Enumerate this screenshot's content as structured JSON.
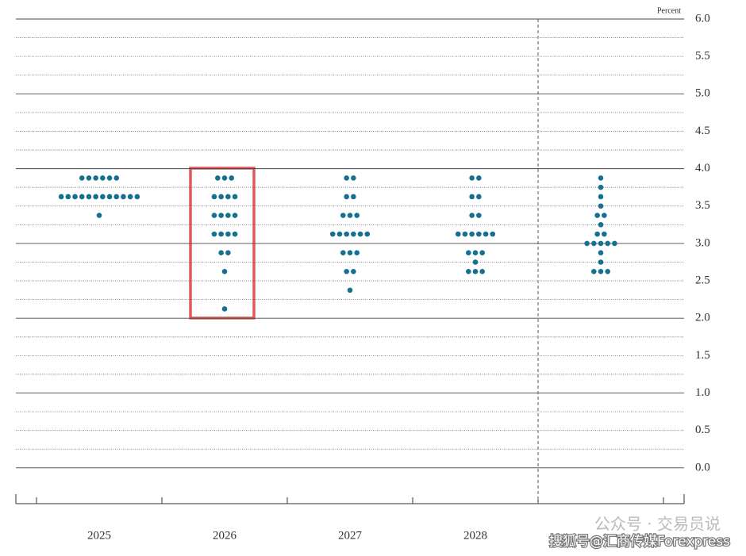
{
  "chart_data": {
    "type": "dot",
    "y_label": "Percent",
    "categories": [
      "2025",
      "2026",
      "2027",
      "2028",
      null
    ],
    "values": [
      [
        3.875,
        3.875,
        3.875,
        3.875,
        3.875,
        3.875,
        3.625,
        3.625,
        3.625,
        3.625,
        3.625,
        3.625,
        3.625,
        3.625,
        3.625,
        3.625,
        3.625,
        3.625,
        3.375
      ],
      [
        3.875,
        3.875,
        3.875,
        3.625,
        3.625,
        3.625,
        3.625,
        3.375,
        3.375,
        3.375,
        3.375,
        3.125,
        3.125,
        3.125,
        3.125,
        2.875,
        2.875,
        2.625,
        2.125
      ],
      [
        3.875,
        3.875,
        3.625,
        3.625,
        3.375,
        3.375,
        3.375,
        3.125,
        3.125,
        3.125,
        3.125,
        3.125,
        3.125,
        2.875,
        2.875,
        2.875,
        2.625,
        2.625,
        2.375
      ],
      [
        3.875,
        3.875,
        3.625,
        3.625,
        3.375,
        3.375,
        3.125,
        3.125,
        3.125,
        3.125,
        3.125,
        3.125,
        2.875,
        2.875,
        2.875,
        2.75,
        2.625,
        2.625,
        2.625
      ],
      [
        3.875,
        3.75,
        3.625,
        3.5,
        3.375,
        3.375,
        3.25,
        3.125,
        3.125,
        3.0,
        3.0,
        3.0,
        3.0,
        3.0,
        2.875,
        2.75,
        2.625,
        2.625,
        2.625
      ]
    ],
    "color": "#16708f",
    "ylim": [
      -0.5,
      6.0
    ],
    "yticks": [
      {
        "value": 0,
        "label": "0.0"
      },
      {
        "value": 0.5,
        "label": "0.5"
      },
      {
        "value": 1,
        "label": "1.0"
      },
      {
        "value": 1.5,
        "label": "1.5"
      },
      {
        "value": 2,
        "label": "2.0"
      },
      {
        "value": 2.5,
        "label": "2.5"
      },
      {
        "value": 3,
        "label": "3.0"
      },
      {
        "value": 3.5,
        "label": "3.5"
      },
      {
        "value": 4,
        "label": "4.0"
      },
      {
        "value": 4.5,
        "label": "4.5"
      },
      {
        "value": 5,
        "label": "5.0"
      },
      {
        "value": 5.5,
        "label": "5.5"
      },
      {
        "value": 6,
        "label": "6.0"
      }
    ],
    "yticks_minor": [
      0.25,
      0.75,
      1.25,
      1.75,
      2.25,
      2.75,
      3.25,
      3.75,
      4.25,
      4.75,
      5.25,
      5.75
    ],
    "grid": true,
    "watermark": [
      "公众号 · 交易员说",
      "搜狐号@汇商传媒Forexpress"
    ]
  }
}
